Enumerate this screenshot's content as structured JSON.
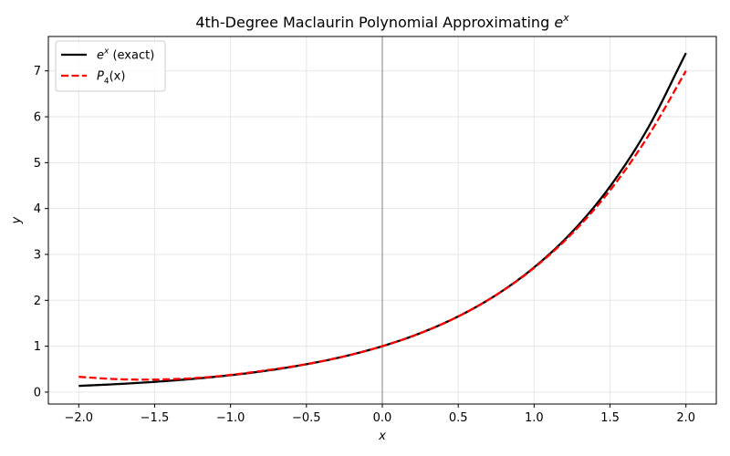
{
  "chart_data": {
    "type": "line",
    "title": {
      "text": "4th-Degree Maclaurin Polynomial Approximating ",
      "base": "e",
      "sup": "x"
    },
    "xlabel": "x",
    "ylabel": "y",
    "xlim": [
      -2.2,
      2.2
    ],
    "ylim": [
      -0.26,
      7.75
    ],
    "xticks": [
      -2.0,
      -1.5,
      -1.0,
      -0.5,
      0.0,
      0.5,
      1.0,
      1.5,
      2.0
    ],
    "xtick_labels": [
      "−2.0",
      "−1.5",
      "−1.0",
      "−0.5",
      "0.0",
      "0.5",
      "1.0",
      "1.5",
      "2.0"
    ],
    "yticks": [
      0,
      1,
      2,
      3,
      4,
      5,
      6,
      7
    ],
    "ytick_labels": [
      "0",
      "1",
      "2",
      "3",
      "4",
      "5",
      "6",
      "7"
    ],
    "grid": true,
    "vline_at": 0,
    "legend_position": "top-left",
    "x": [
      -2.0,
      -1.75,
      -1.5,
      -1.25,
      -1.0,
      -0.75,
      -0.5,
      -0.25,
      0.0,
      0.25,
      0.5,
      0.75,
      1.0,
      1.25,
      1.5,
      1.75,
      2.0
    ],
    "series": [
      {
        "name": "e^x (exact)",
        "legend": {
          "base": "e",
          "sup": "x",
          "rest": " (exact)"
        },
        "color": "#000000",
        "dash": "solid",
        "values": [
          0.135,
          0.174,
          0.223,
          0.287,
          0.368,
          0.472,
          0.607,
          0.779,
          1.0,
          1.284,
          1.649,
          2.117,
          2.718,
          3.49,
          4.482,
          5.755,
          7.389
        ]
      },
      {
        "name": "P4(x)",
        "legend": {
          "base": "P",
          "sub": "4",
          "rest": "(x)"
        },
        "color": "#ff0000",
        "dash": "dashed",
        "values": [
          0.333,
          0.282,
          0.273,
          0.302,
          0.375,
          0.482,
          0.609,
          0.779,
          1.0,
          1.284,
          1.648,
          2.115,
          2.708,
          3.457,
          4.398,
          5.574,
          7.0
        ]
      }
    ]
  }
}
